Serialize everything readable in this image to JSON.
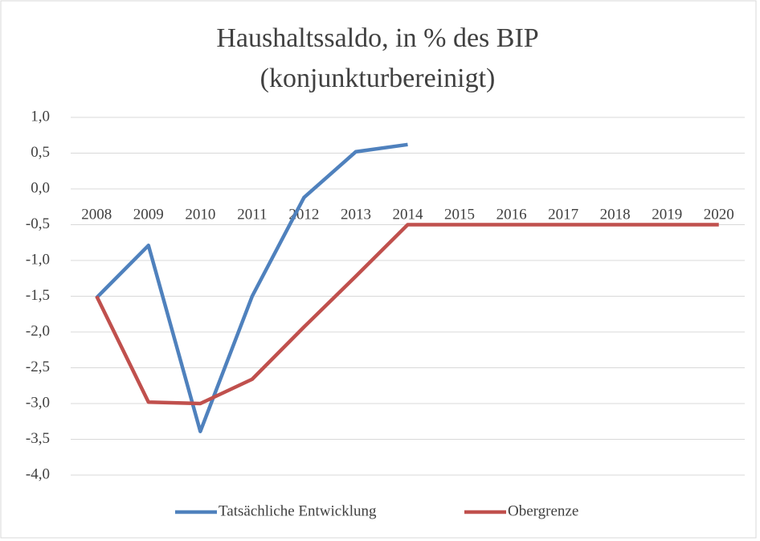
{
  "chart_data": {
    "type": "line",
    "title": [
      "Haushaltssaldo, in % des BIP",
      "(konjunkturbereinigt)"
    ],
    "categories": [
      "2008",
      "2009",
      "2010",
      "2011",
      "2012",
      "2013",
      "2014",
      "2015",
      "2016",
      "2017",
      "2018",
      "2019",
      "2020"
    ],
    "series": [
      {
        "name": "Tatsächliche Entwicklung",
        "color": "#4f81bd",
        "values": [
          -1.52,
          -0.79,
          -3.39,
          -1.5,
          -0.12,
          0.52,
          0.62,
          null,
          null,
          null,
          null,
          null,
          null
        ]
      },
      {
        "name": "Obergrenze",
        "color": "#c0504d",
        "values": [
          -1.5,
          -2.98,
          -3.0,
          -2.66,
          -1.93,
          -1.22,
          -0.5,
          -0.5,
          -0.5,
          -0.5,
          -0.5,
          -0.5,
          -0.5
        ]
      }
    ],
    "ylim": [
      -4.0,
      1.0
    ],
    "yticks": [
      {
        "value": -4.0,
        "label": "-4,0"
      },
      {
        "value": -3.5,
        "label": "-3,5"
      },
      {
        "value": -3.0,
        "label": "-3,0"
      },
      {
        "value": -2.5,
        "label": "-2,5"
      },
      {
        "value": -2.0,
        "label": "-2,0"
      },
      {
        "value": -1.5,
        "label": "-1,5"
      },
      {
        "value": -1.0,
        "label": "-1,0"
      },
      {
        "value": -0.5,
        "label": "-0,5"
      },
      {
        "value": 0.0,
        "label": "0,0"
      },
      {
        "value": 0.5,
        "label": "0,5"
      },
      {
        "value": 1.0,
        "label": "1,0"
      }
    ],
    "grid": true,
    "legend": "bottom"
  }
}
